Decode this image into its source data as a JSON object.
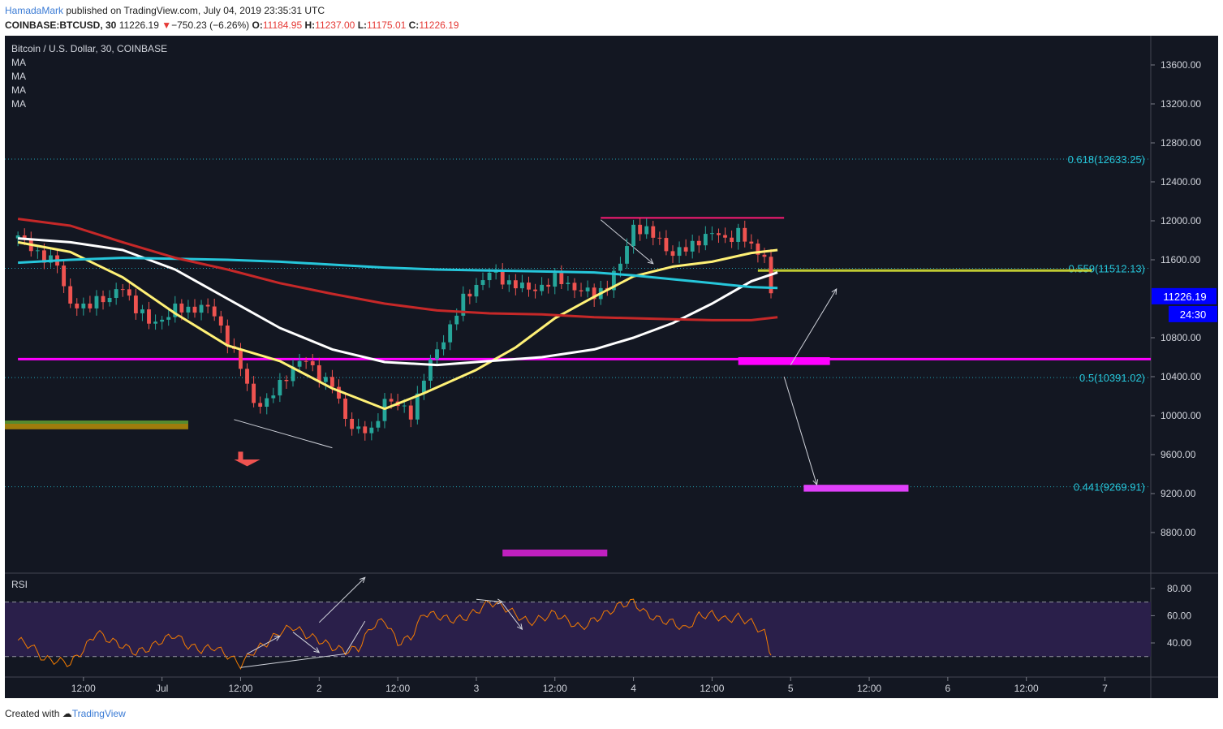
{
  "header": {
    "author": "HamadaMark",
    "published_text": "published on TradingView.com, July 04, 2019 23:35:31 UTC",
    "symbol": "COINBASE:BTCUSD, 30",
    "price": "11226.19",
    "change_arrow": "▼",
    "change": "−750.23 (−6.26%)",
    "open_label": "O:",
    "open": "11184.95",
    "high_label": "H:",
    "high": "11237.00",
    "low_label": "L:",
    "low": "11175.01",
    "close_label": "C:",
    "close": "11226.19"
  },
  "footer": {
    "created_with": "Created with",
    "brand": "TradingView"
  },
  "chart_data": {
    "type": "line",
    "title": "Bitcoin / U.S. Dollar, 30, COINBASE",
    "legend": [
      "MA",
      "MA",
      "MA",
      "MA"
    ],
    "colors": {
      "background": "#131722",
      "grid": "#2a2e39",
      "candle_up": "#26a69a",
      "candle_down": "#ef5350",
      "ma_yellow": "#fff176",
      "ma_white": "#ffffff",
      "ma_cyan": "#26c6da",
      "ma_red": "#c62828",
      "magenta": "#ff00ff",
      "fib": "#26c6da",
      "rsi": "#f57c00"
    },
    "ylim": [
      8400,
      13900
    ],
    "y_ticks": [
      "13600.00",
      "13200.00",
      "12800.00",
      "12400.00",
      "12000.00",
      "11600.00",
      "10800.00",
      "10400.00",
      "10000.00",
      "9600.00",
      "9200.00",
      "8800.00"
    ],
    "x_ticks": [
      {
        "label": "12:00",
        "t": 10
      },
      {
        "label": "Jul",
        "t": 22
      },
      {
        "label": "12:00",
        "t": 34
      },
      {
        "label": "2",
        "t": 46
      },
      {
        "label": "12:00",
        "t": 58
      },
      {
        "label": "3",
        "t": 70
      },
      {
        "label": "12:00",
        "t": 82
      },
      {
        "label": "4",
        "t": 94
      },
      {
        "label": "12:00",
        "t": 106
      },
      {
        "label": "5",
        "t": 118
      },
      {
        "label": "12:00",
        "t": 130
      },
      {
        "label": "6",
        "t": 142
      },
      {
        "label": "12:00",
        "t": 154
      },
      {
        "label": "7",
        "t": 166
      }
    ],
    "current_price": "11226.19",
    "countdown": "24:30",
    "fib_levels": [
      {
        "label": "0.618(12633.25)",
        "value": 12633.25
      },
      {
        "label": "0.559(11512.13)",
        "value": 11512.13
      },
      {
        "label": "0.5(10391.02)",
        "value": 10391.02
      },
      {
        "label": "0.441(9269.91)",
        "value": 9269.91
      }
    ],
    "horizontal_lines": [
      {
        "value": 10580,
        "t0": 0,
        "t1": 173
      }
    ],
    "price_path": [
      [
        0,
        11820
      ],
      [
        2,
        11750
      ],
      [
        4,
        11600
      ],
      [
        6,
        11560
      ],
      [
        8,
        11150
      ],
      [
        10,
        11080
      ],
      [
        12,
        11220
      ],
      [
        14,
        11180
      ],
      [
        16,
        11340
      ],
      [
        18,
        11100
      ],
      [
        20,
        10950
      ],
      [
        22,
        11000
      ],
      [
        24,
        11080
      ],
      [
        26,
        11100
      ],
      [
        28,
        11120
      ],
      [
        30,
        11040
      ],
      [
        32,
        10780
      ],
      [
        34,
        10480
      ],
      [
        36,
        10150
      ],
      [
        38,
        10120
      ],
      [
        40,
        10330
      ],
      [
        42,
        10500
      ],
      [
        44,
        10560
      ],
      [
        46,
        10420
      ],
      [
        48,
        10300
      ],
      [
        50,
        9980
      ],
      [
        52,
        9850
      ],
      [
        54,
        9820
      ],
      [
        56,
        10180
      ],
      [
        58,
        10090
      ],
      [
        60,
        10030
      ],
      [
        62,
        10380
      ],
      [
        64,
        10680
      ],
      [
        66,
        10920
      ],
      [
        68,
        11180
      ],
      [
        70,
        11350
      ],
      [
        72,
        11460
      ],
      [
        74,
        11400
      ],
      [
        76,
        11350
      ],
      [
        78,
        11280
      ],
      [
        80,
        11340
      ],
      [
        82,
        11390
      ],
      [
        84,
        11360
      ],
      [
        86,
        11280
      ],
      [
        88,
        11230
      ],
      [
        90,
        11350
      ],
      [
        92,
        11540
      ],
      [
        94,
        11960
      ],
      [
        96,
        11880
      ],
      [
        98,
        11800
      ],
      [
        100,
        11660
      ],
      [
        102,
        11700
      ],
      [
        104,
        11820
      ],
      [
        106,
        11860
      ],
      [
        108,
        11820
      ],
      [
        110,
        11880
      ],
      [
        112,
        11720
      ],
      [
        114,
        11660
      ],
      [
        115,
        11226
      ]
    ],
    "ma_series": [
      {
        "name": "MA yellow",
        "color": "#fff176",
        "points": [
          [
            0,
            11780
          ],
          [
            8,
            11680
          ],
          [
            16,
            11420
          ],
          [
            24,
            11050
          ],
          [
            32,
            10720
          ],
          [
            40,
            10560
          ],
          [
            48,
            10280
          ],
          [
            56,
            10070
          ],
          [
            62,
            10230
          ],
          [
            70,
            10470
          ],
          [
            76,
            10700
          ],
          [
            82,
            11000
          ],
          [
            88,
            11220
          ],
          [
            94,
            11430
          ],
          [
            100,
            11530
          ],
          [
            106,
            11580
          ],
          [
            112,
            11670
          ],
          [
            116,
            11700
          ]
        ]
      },
      {
        "name": "MA white",
        "color": "#ffffff",
        "points": [
          [
            0,
            11820
          ],
          [
            8,
            11780
          ],
          [
            16,
            11700
          ],
          [
            24,
            11500
          ],
          [
            32,
            11200
          ],
          [
            40,
            10900
          ],
          [
            48,
            10680
          ],
          [
            56,
            10550
          ],
          [
            64,
            10520
          ],
          [
            72,
            10560
          ],
          [
            80,
            10600
          ],
          [
            88,
            10680
          ],
          [
            94,
            10800
          ],
          [
            100,
            10950
          ],
          [
            106,
            11150
          ],
          [
            112,
            11380
          ],
          [
            116,
            11470
          ]
        ]
      },
      {
        "name": "MA cyan",
        "color": "#26c6da",
        "points": [
          [
            0,
            11570
          ],
          [
            8,
            11600
          ],
          [
            16,
            11620
          ],
          [
            24,
            11610
          ],
          [
            32,
            11600
          ],
          [
            40,
            11580
          ],
          [
            48,
            11550
          ],
          [
            56,
            11520
          ],
          [
            64,
            11500
          ],
          [
            72,
            11490
          ],
          [
            80,
            11480
          ],
          [
            88,
            11470
          ],
          [
            94,
            11440
          ],
          [
            100,
            11400
          ],
          [
            106,
            11360
          ],
          [
            112,
            11320
          ],
          [
            116,
            11310
          ]
        ]
      },
      {
        "name": "MA red",
        "color": "#c62828",
        "points": [
          [
            0,
            12020
          ],
          [
            8,
            11950
          ],
          [
            16,
            11780
          ],
          [
            24,
            11620
          ],
          [
            32,
            11500
          ],
          [
            40,
            11360
          ],
          [
            48,
            11250
          ],
          [
            56,
            11150
          ],
          [
            64,
            11080
          ],
          [
            72,
            11050
          ],
          [
            80,
            11040
          ],
          [
            88,
            11010
          ],
          [
            94,
            11000
          ],
          [
            100,
            10990
          ],
          [
            106,
            10980
          ],
          [
            112,
            10980
          ],
          [
            116,
            11010
          ]
        ]
      }
    ],
    "rsi": {
      "label": "RSI",
      "ylim": [
        15,
        90
      ],
      "y_ticks": [
        "80.00",
        "60.00",
        "40.00"
      ],
      "bands": [
        70,
        30
      ],
      "values": [
        [
          0,
          42
        ],
        [
          2,
          38
        ],
        [
          4,
          28
        ],
        [
          6,
          27
        ],
        [
          8,
          25
        ],
        [
          10,
          35
        ],
        [
          12,
          48
        ],
        [
          14,
          42
        ],
        [
          16,
          38
        ],
        [
          18,
          33
        ],
        [
          20,
          36
        ],
        [
          22,
          42
        ],
        [
          24,
          46
        ],
        [
          26,
          38
        ],
        [
          28,
          35
        ],
        [
          30,
          37
        ],
        [
          32,
          31
        ],
        [
          34,
          24
        ],
        [
          36,
          34
        ],
        [
          38,
          40
        ],
        [
          40,
          48
        ],
        [
          42,
          52
        ],
        [
          44,
          46
        ],
        [
          46,
          42
        ],
        [
          48,
          37
        ],
        [
          50,
          34
        ],
        [
          52,
          36
        ],
        [
          54,
          52
        ],
        [
          56,
          57
        ],
        [
          58,
          40
        ],
        [
          60,
          44
        ],
        [
          62,
          62
        ],
        [
          64,
          60
        ],
        [
          66,
          57
        ],
        [
          68,
          58
        ],
        [
          70,
          63
        ],
        [
          72,
          70
        ],
        [
          74,
          67
        ],
        [
          76,
          61
        ],
        [
          78,
          55
        ],
        [
          80,
          58
        ],
        [
          82,
          62
        ],
        [
          84,
          56
        ],
        [
          86,
          51
        ],
        [
          88,
          57
        ],
        [
          90,
          62
        ],
        [
          92,
          68
        ],
        [
          94,
          70
        ],
        [
          96,
          61
        ],
        [
          98,
          57
        ],
        [
          100,
          55
        ],
        [
          102,
          50
        ],
        [
          104,
          60
        ],
        [
          106,
          61
        ],
        [
          108,
          57
        ],
        [
          110,
          59
        ],
        [
          112,
          55
        ],
        [
          114,
          47
        ],
        [
          115,
          31
        ]
      ]
    }
  }
}
